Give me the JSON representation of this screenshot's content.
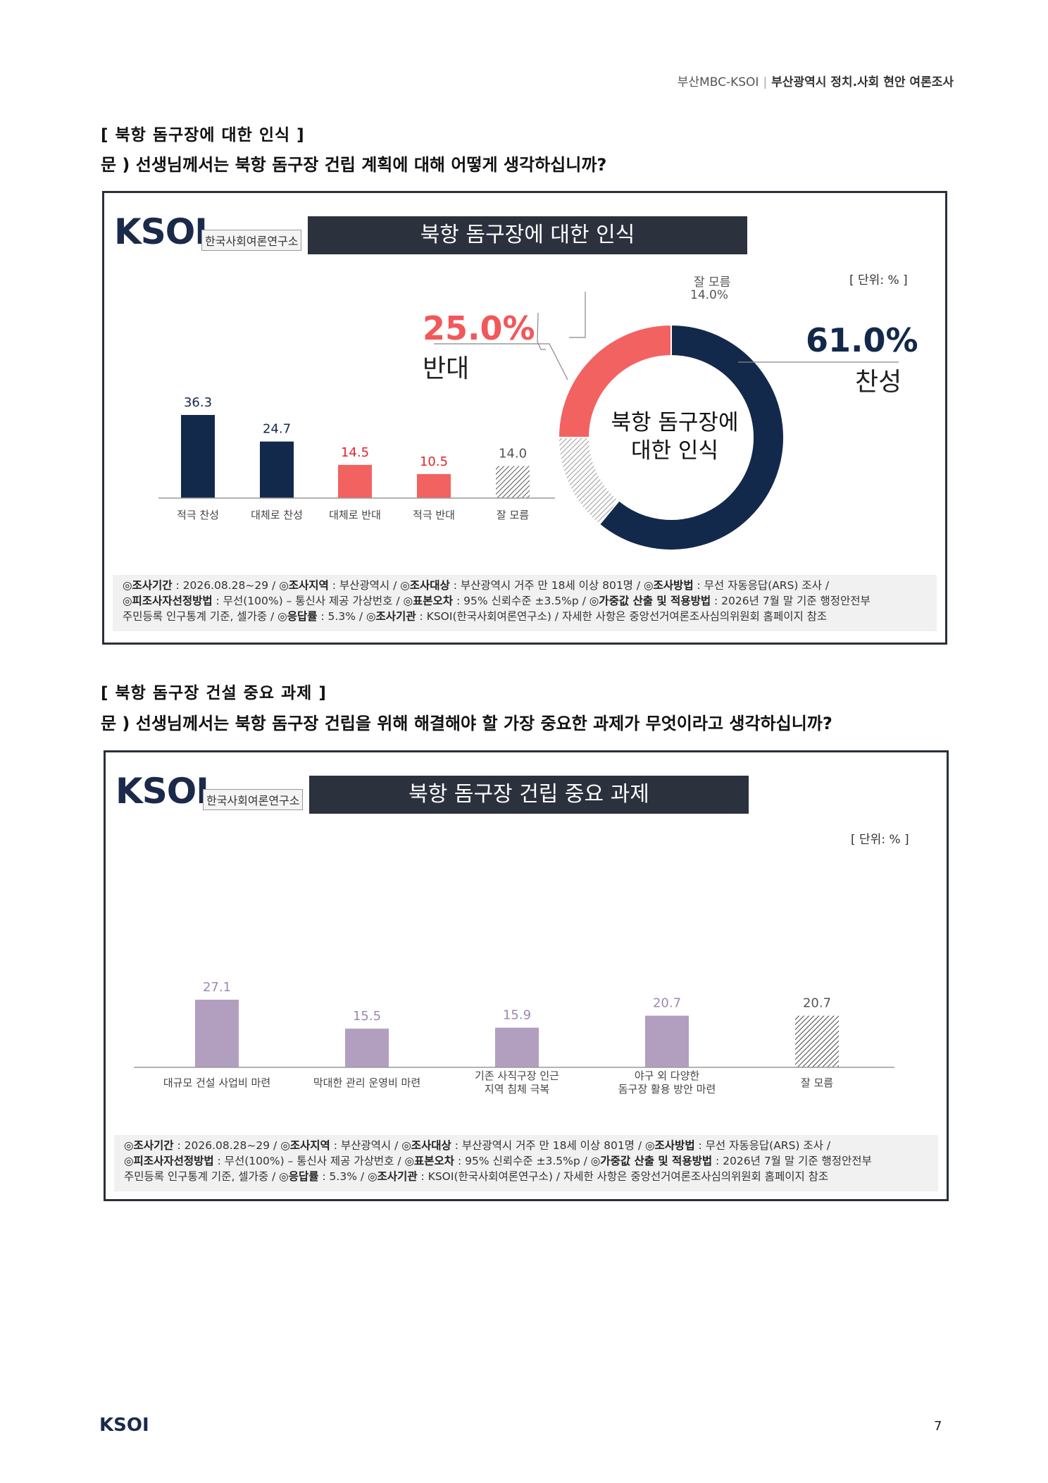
{
  "header": {
    "left": "부산MBC-KSOI",
    "right": "부산광역시 정치.사회 현안 여론조사"
  },
  "section1": {
    "heading": "[ 북항 돔구장에 대한 인식 ]",
    "question": "문 )  선생님께서는 북항 돔구장 건립 계획에 대해 어떻게 생각하십니까?",
    "panel": {
      "logo_text": "KSOI",
      "logo_sub": "한국사회여론연구소",
      "title": "북항 돔구장에 대한 인식",
      "unit": "[ 단위: % ]",
      "donut_center_line1": "북항 돔구장에",
      "donut_center_line2": "대한 인식",
      "oppose_pct": "25.0%",
      "oppose_label": "반대",
      "support_pct": "61.0%",
      "support_label": "찬성",
      "unknown_label": "잘 모름",
      "unknown_pct": "14.0%",
      "footer": {
        "l1_k1": "◎조사기간",
        "l1_v1": " : 2026.08.28~29 / ",
        "l1_k2": "◎조사지역",
        "l1_v2": " : 부산광역시 / ",
        "l1_k3": "◎조사대상",
        "l1_v3": " : 부산광역시 거주 만 18세 이상 801명 / ",
        "l1_k4": "◎조사방법",
        "l1_v4": " : 무선 자동응답(ARS) 조사 /",
        "l2_k1": "◎피조사자선정방법",
        "l2_v1": " : 무선(100%) – 통신사 제공 가상번호 / ",
        "l2_k2": "◎표본오차",
        "l2_v2": " : 95% 신뢰수준 ±3.5%p / ",
        "l2_k3": "◎가중값 산출 및 적용방법",
        "l2_v3": " : 2026년 7월 말 기준 행정안전부",
        "l3_v1": "주민등록 인구통계 기준, 셀가중 / ",
        "l3_k1": "◎응답률",
        "l3_v2": " : 5.3% / ",
        "l3_k2": "◎조사기관",
        "l3_v3": " : KSOI(한국사회여론연구소) / 자세한 사항은 중앙선거여론조사심의위원회 홈페이지 참조"
      }
    }
  },
  "section2": {
    "heading": "[ 북항 돔구장 건설 중요 과제 ]",
    "question": "문 )  선생님께서는 북항 돔구장 건립을 위해 해결해야 할 가장 중요한 과제가 무엇이라고 생각하십니까?",
    "panel": {
      "logo_text": "KSOI",
      "logo_sub": "한국사회여론연구소",
      "title": "북항 돔구장 건립 중요 과제",
      "unit": "[ 단위: % ]",
      "footer": {
        "l1_k1": "◎조사기간",
        "l1_v1": " : 2026.08.28~29 / ",
        "l1_k2": "◎조사지역",
        "l1_v2": " : 부산광역시 / ",
        "l1_k3": "◎조사대상",
        "l1_v3": " : 부산광역시 거주 만 18세 이상 801명 / ",
        "l1_k4": "◎조사방법",
        "l1_v4": " : 무선 자동응답(ARS) 조사 /",
        "l2_k1": "◎피조사자선정방법",
        "l2_v1": " : 무선(100%) – 통신사 제공 가상번호 / ",
        "l2_k2": "◎표본오차",
        "l2_v2": " : 95% 신뢰수준 ±3.5%p / ",
        "l2_k3": "◎가중값 산출 및 적용방법",
        "l2_v3": " : 2026년 7월 말 기준 행정안전부",
        "l3_v1": "주민등록 인구통계 기준, 셀가중 / ",
        "l3_k1": "◎응답률",
        "l3_v2": " : 5.3% / ",
        "l3_k2": "◎조사기관",
        "l3_v3": " : KSOI(한국사회여론연구소) / 자세한 사항은 중앙선거여론조사심의위원회 홈페이지 참조"
      }
    }
  },
  "chart_data": [
    {
      "type": "bar",
      "title": "북항 돔구장에 대한 인식",
      "categories": [
        "적극 찬성",
        "대체로 찬성",
        "대체로 반대",
        "적극 반대",
        "잘 모름"
      ],
      "values": [
        36.3,
        24.7,
        14.5,
        10.5,
        14.0
      ],
      "value_labels": [
        "36.3",
        "24.7",
        "14.5",
        "10.5",
        "14.0"
      ],
      "colors": [
        "#13294b",
        "#13294b",
        "#f26261",
        "#f26261",
        "hatch"
      ],
      "label_colors": [
        "#13294b",
        "#13294b",
        "#e0252b",
        "#e0252b",
        "#555555"
      ],
      "ylim": [
        0,
        40
      ]
    },
    {
      "type": "pie",
      "title": "북항 돔구장에 대한 인식",
      "categories": [
        "찬성",
        "잘 모름",
        "반대"
      ],
      "values": [
        61.0,
        14.0,
        25.0
      ],
      "colors": [
        "#13294b",
        "hatch",
        "#f26261"
      ]
    },
    {
      "type": "bar",
      "title": "북항 돔구장 건립 중요 과제",
      "categories": [
        "대규모 건설 사업비 마련",
        "막대한 관리 운영비 마련",
        "기존 사직구장 인근 지역 침체 극복",
        "야구 외 다양한 돔구장 활용 방안 마련",
        "잘 모름"
      ],
      "category_lines": [
        [
          "대규모 건설 사업비 마련"
        ],
        [
          "막대한 관리 운영비 마련"
        ],
        [
          "기존 사직구장 인근",
          "지역 침체 극복"
        ],
        [
          "야구 외 다양한",
          "돔구장 활용 방안 마련"
        ],
        [
          "잘 모름"
        ]
      ],
      "values": [
        27.1,
        15.5,
        15.9,
        20.7,
        20.7
      ],
      "value_labels": [
        "27.1",
        "15.5",
        "15.9",
        "20.7",
        "20.7"
      ],
      "colors": [
        "#b29fbf",
        "#b29fbf",
        "#b29fbf",
        "#b29fbf",
        "hatch"
      ],
      "label_colors": [
        "#9f87b3",
        "#9f87b3",
        "#9f87b3",
        "#9f87b3",
        "#555555"
      ],
      "ylim": [
        0,
        40
      ]
    }
  ],
  "page": {
    "logo": "KSOI",
    "number": "7"
  }
}
